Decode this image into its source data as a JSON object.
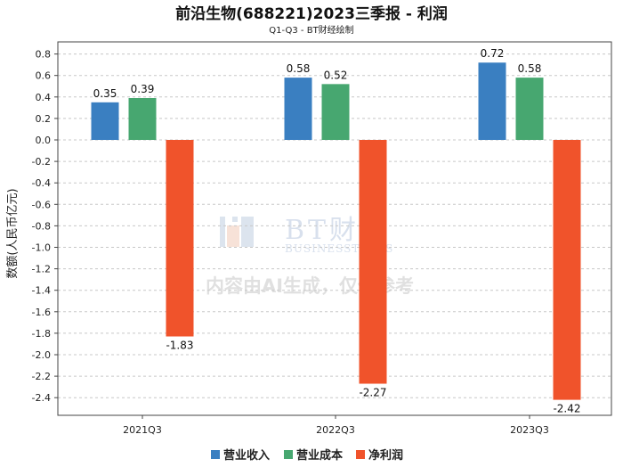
{
  "chart_data": {
    "type": "bar",
    "title": "前沿生物(688221)2023三季报 - 利润",
    "subtitle": "Q1-Q3 - BT财经绘制",
    "ylabel": "数额(人民币亿元)",
    "categories": [
      "2021Q3",
      "2022Q3",
      "2023Q3"
    ],
    "series": [
      {
        "name": "营业收入",
        "color": "#3a7fc1",
        "values": [
          0.35,
          0.58,
          0.72
        ]
      },
      {
        "name": "营业成本",
        "color": "#47a770",
        "values": [
          0.39,
          0.52,
          0.58
        ]
      },
      {
        "name": "净利润",
        "color": "#f0532b",
        "values": [
          -1.83,
          -2.27,
          -2.42
        ]
      }
    ],
    "ylim": [
      -2.6,
      0.85
    ],
    "yticks": [
      0.8,
      0.6,
      0.4,
      0.2,
      0.0,
      -0.2,
      -0.4,
      -0.6,
      -0.8,
      -1.0,
      -1.2,
      -1.4,
      -1.6,
      -1.8,
      -2.0,
      -2.2,
      -2.4
    ],
    "grid": true,
    "legend": "bottom-center"
  },
  "watermark": {
    "logo": "BT财经",
    "logo_en": "BUSINESSTIMES",
    "notice": "内容由AI生成，仅供参考"
  }
}
